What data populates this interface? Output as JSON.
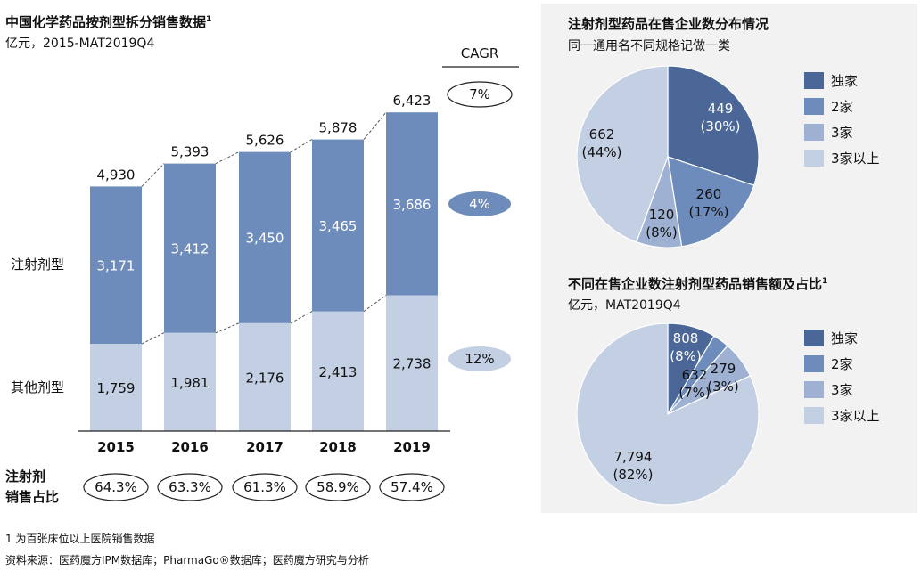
{
  "left": {
    "title": "中国化学药品按剂型拆分销售数据",
    "title_sup": "1",
    "subtitle": "亿元，2015-MAT2019Q4"
  },
  "right": {
    "pie1_title": "注射剂型药品在售企业数分布情况",
    "pie1_subtitle": "同一通用名不同规格记做一类",
    "pie2_title": "不同在售企业数注射剂型药品销售额及占比",
    "pie2_title_sup": "1",
    "pie2_subtitle": "亿元，MAT2019Q4"
  },
  "footnote": "1 为百张床位以上医院销售数据",
  "source": "资料来源：医药魔方IPM数据库；PharmaGo®数据库；医药魔方研究与分析",
  "colors": {
    "dark": "#4a6797",
    "medium": "#6d8cbb",
    "light": "#9eb1d3",
    "lightest": "#c3cfe2",
    "panel": "#f2f2f2"
  },
  "chart_data": [
    {
      "type": "bar",
      "stacked": true,
      "categories": [
        "2015",
        "2016",
        "2017",
        "2018",
        "2019"
      ],
      "series": [
        {
          "name": "其他剂型",
          "values": [
            1759,
            1981,
            2176,
            2413,
            2738
          ],
          "color": "#c3cfe2"
        },
        {
          "name": "注射剂型",
          "values": [
            3171,
            3412,
            3450,
            3465,
            3686
          ],
          "color": "#6d8cbb"
        }
      ],
      "totals": [
        "4,930",
        "5,393",
        "5,626",
        "5,878",
        "6,423"
      ],
      "totals_values": [
        4930,
        5393,
        5626,
        5878,
        6423
      ],
      "value_labels": {
        "其他剂型": [
          "1,759",
          "1,981",
          "2,176",
          "2,413",
          "2,738"
        ],
        "注射剂型": [
          "3,171",
          "3,412",
          "3,450",
          "3,465",
          "3,686"
        ]
      },
      "cagr_header": "CAGR",
      "cagr": {
        "total": "7%",
        "注射剂型": "4%",
        "其他剂型": "12%"
      },
      "share_row_label": [
        "注射剂",
        "销售占比"
      ],
      "share_values": [
        "64.3%",
        "63.3%",
        "61.3%",
        "58.9%",
        "57.4%"
      ],
      "ylim": [
        0,
        6600
      ]
    },
    {
      "type": "pie",
      "categories": [
        "独家",
        "2家",
        "3家",
        "3家以上"
      ],
      "values": [
        449,
        260,
        120,
        662
      ],
      "labels": [
        "449",
        "260",
        "120",
        "662"
      ],
      "percent_labels": [
        "(30%)",
        "(17%)",
        "(8%)",
        "(44%)"
      ],
      "colors": [
        "#4a6797",
        "#6d8cbb",
        "#9eb1d3",
        "#c3cfe2"
      ],
      "legend": "right"
    },
    {
      "type": "pie",
      "categories": [
        "独家",
        "2家",
        "3家",
        "3家以上"
      ],
      "values": [
        808,
        279,
        632,
        7794
      ],
      "labels": [
        "808",
        "279",
        "632",
        "7,794"
      ],
      "percent_labels": [
        "(8%)",
        "(3%)",
        "(7%)",
        "(82%)"
      ],
      "colors": [
        "#4a6797",
        "#6d8cbb",
        "#9eb1d3",
        "#c3cfe2"
      ],
      "legend": "right"
    }
  ]
}
